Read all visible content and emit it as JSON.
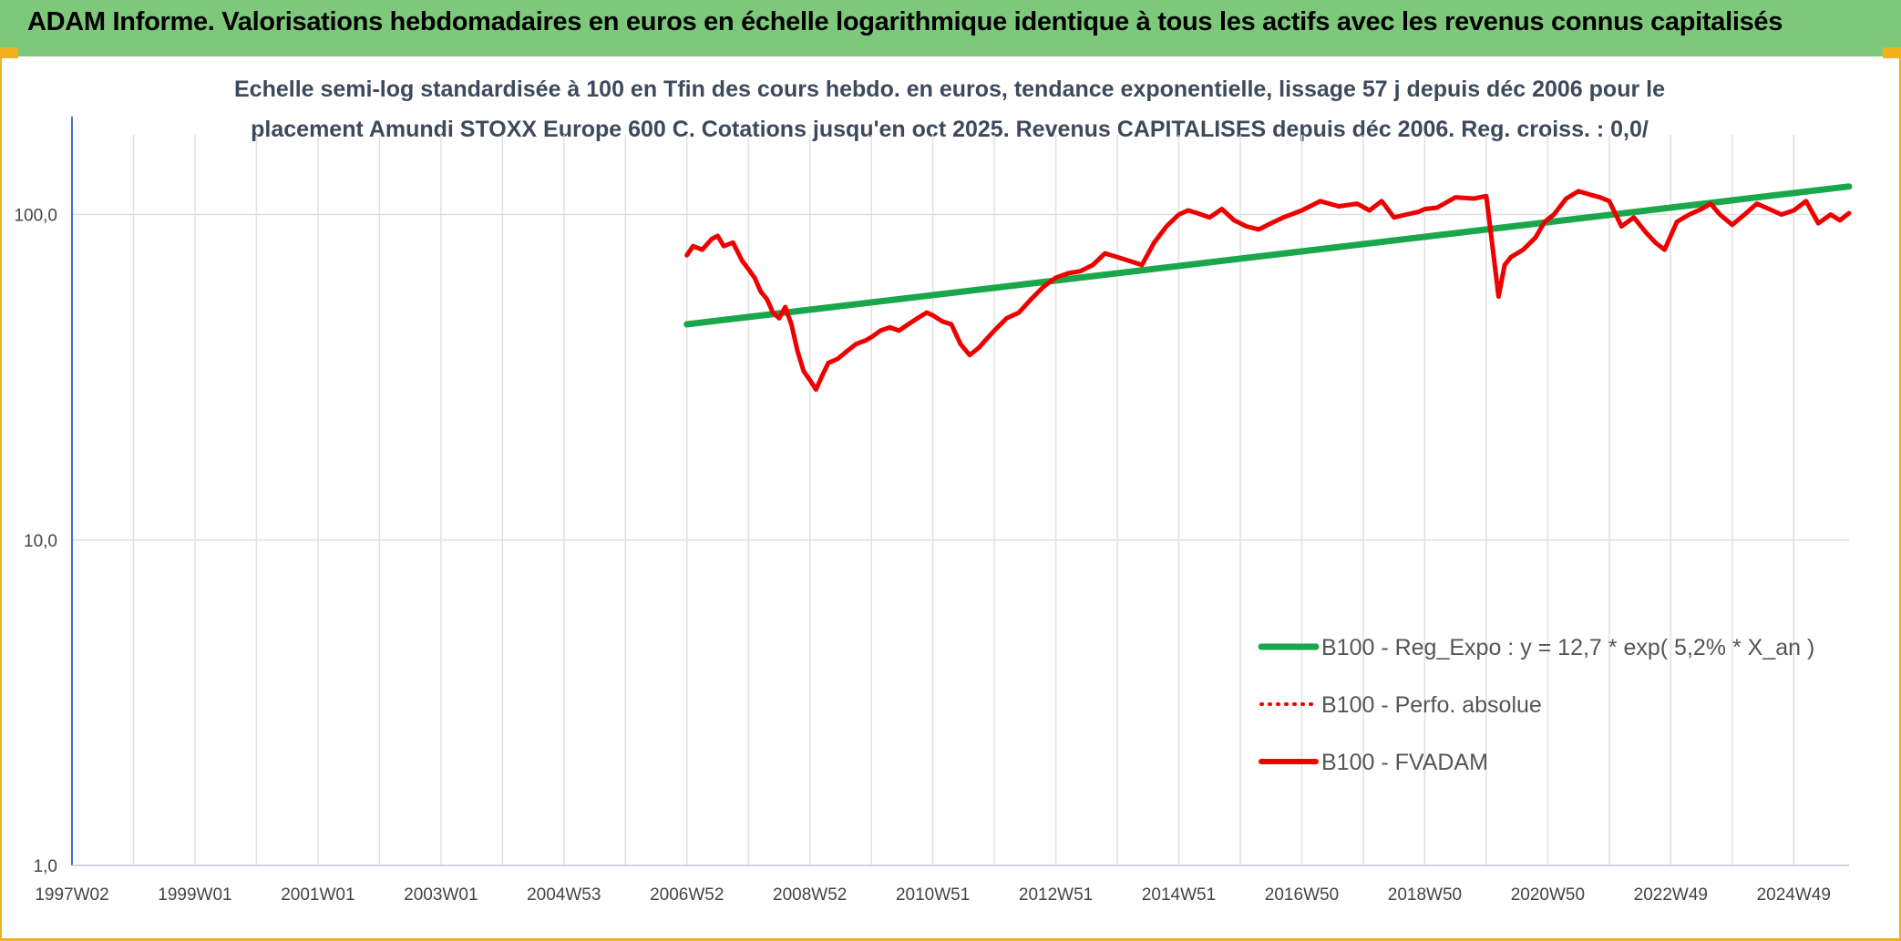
{
  "header": {
    "title": "ADAM Informe. Valorisations hebdomadaires en euros en échelle logarithmique identique à tous les actifs avec les revenus connus capitalisés"
  },
  "colors": {
    "banner": "#7dc87a",
    "trend": "#1aa64b",
    "price": "#ee0000",
    "grid": "#dde1e6",
    "axis": "#4472c4",
    "frame": "#f2b01e"
  },
  "chart_data": {
    "type": "line",
    "title_lines": [
      "Echelle semi-log standardisée à 100 en Tfin des cours hebdo. en euros, tendance exponentielle, lissage 57 j depuis déc 2006 pour le",
      "placement Amundi STOXX Europe 600 C. Cotations jusqu'en oct 2025. Revenus CAPITALISES depuis déc 2006. Reg. croiss. : 0,0/"
    ],
    "y_scale": "log",
    "ylim": [
      1,
      200
    ],
    "y_ticks": [
      {
        "value": 1,
        "label": "1,0"
      },
      {
        "value": 10,
        "label": "10,0"
      },
      {
        "value": 100,
        "label": "100,0"
      }
    ],
    "xlim": [
      1997.0,
      2025.9
    ],
    "x_tick_labels": [
      {
        "value": 1997.0,
        "label": "1997W02"
      },
      {
        "value": 1999.0,
        "label": "1999W01"
      },
      {
        "value": 2001.0,
        "label": "2001W01"
      },
      {
        "value": 2003.0,
        "label": "2003W01"
      },
      {
        "value": 2005.0,
        "label": "2004W53"
      },
      {
        "value": 2007.0,
        "label": "2006W52"
      },
      {
        "value": 2009.0,
        "label": "2008W52"
      },
      {
        "value": 2011.0,
        "label": "2010W51"
      },
      {
        "value": 2013.0,
        "label": "2012W51"
      },
      {
        "value": 2015.0,
        "label": "2014W51"
      },
      {
        "value": 2017.0,
        "label": "2016W50"
      },
      {
        "value": 2019.0,
        "label": "2018W50"
      },
      {
        "value": 2021.0,
        "label": "2020W50"
      },
      {
        "value": 2023.0,
        "label": "2022W49"
      },
      {
        "value": 2025.0,
        "label": "2024W49"
      }
    ],
    "x_gridlines": [
      1997.0,
      1998.0,
      1999.0,
      2000.0,
      2001.0,
      2002.0,
      2003.0,
      2004.0,
      2005.0,
      2006.0,
      2007.0,
      2008.0,
      2009.0,
      2010.0,
      2011.0,
      2012.0,
      2013.0,
      2014.0,
      2015.0,
      2016.0,
      2017.0,
      2018.0,
      2019.0,
      2020.0,
      2021.0,
      2022.0,
      2023.0,
      2024.0,
      2025.0
    ],
    "legend_position": "bottom-right",
    "series": [
      {
        "name": "B100 - Reg_Expo : y = 12,7 * exp( 5,2% *  X_an )",
        "style": "solid-thick",
        "color": "#1aa64b",
        "x": [
          2007.0,
          2025.9
        ],
        "y": [
          46.0,
          122.0
        ]
      },
      {
        "name": "B100 - Perfo. absolue",
        "style": "dotted",
        "color": "#ee0000",
        "x": [],
        "y": []
      },
      {
        "name": "B100 - FVADAM",
        "style": "solid",
        "color": "#ee0000",
        "x": [
          2007.0,
          2007.1,
          2007.25,
          2007.4,
          2007.5,
          2007.6,
          2007.75,
          2007.9,
          2008.0,
          2008.1,
          2008.2,
          2008.3,
          2008.4,
          2008.5,
          2008.6,
          2008.7,
          2008.8,
          2008.9,
          2009.0,
          2009.1,
          2009.2,
          2009.3,
          2009.45,
          2009.6,
          2009.75,
          2009.9,
          2010.0,
          2010.15,
          2010.3,
          2010.45,
          2010.6,
          2010.75,
          2010.9,
          2011.0,
          2011.15,
          2011.3,
          2011.45,
          2011.6,
          2011.75,
          2011.85,
          2012.0,
          2012.2,
          2012.4,
          2012.6,
          2012.8,
          2013.0,
          2013.2,
          2013.4,
          2013.6,
          2013.8,
          2014.0,
          2014.2,
          2014.4,
          2014.6,
          2014.8,
          2015.0,
          2015.15,
          2015.3,
          2015.5,
          2015.7,
          2015.9,
          2016.1,
          2016.3,
          2016.5,
          2016.7,
          2017.0,
          2017.3,
          2017.6,
          2017.9,
          2018.1,
          2018.3,
          2018.5,
          2018.7,
          2018.9,
          2019.0,
          2019.2,
          2019.5,
          2019.8,
          2020.0,
          2020.1,
          2020.2,
          2020.3,
          2020.4,
          2020.6,
          2020.8,
          2020.95,
          2021.1,
          2021.3,
          2021.5,
          2021.7,
          2021.85,
          2022.0,
          2022.2,
          2022.4,
          2022.6,
          2022.75,
          2022.9,
          2023.1,
          2023.3,
          2023.5,
          2023.65,
          2023.8,
          2024.0,
          2024.2,
          2024.4,
          2024.6,
          2024.8,
          2025.0,
          2025.2,
          2025.4,
          2025.6,
          2025.75,
          2025.9
        ],
        "y": [
          75,
          80,
          78,
          84,
          86,
          80,
          82,
          72,
          68,
          64,
          58,
          55,
          50,
          48,
          52,
          46,
          38,
          33,
          31,
          29,
          32,
          35,
          36,
          38,
          40,
          41,
          42,
          44,
          45,
          44,
          46,
          48,
          50,
          49,
          47,
          46,
          40,
          37,
          39,
          41,
          44,
          48,
          50,
          55,
          60,
          64,
          66,
          67,
          70,
          76,
          74,
          72,
          70,
          82,
          92,
          100,
          103,
          101,
          98,
          104,
          96,
          92,
          90,
          94,
          98,
          103,
          110,
          106,
          108,
          103,
          110,
          98,
          100,
          102,
          104,
          105,
          113,
          112,
          114,
          80,
          56,
          70,
          74,
          78,
          85,
          95,
          100,
          112,
          118,
          115,
          113,
          110,
          92,
          98,
          88,
          82,
          78,
          95,
          100,
          104,
          108,
          100,
          93,
          100,
          108,
          104,
          100,
          103,
          110,
          94,
          100,
          96,
          101
        ]
      }
    ]
  }
}
